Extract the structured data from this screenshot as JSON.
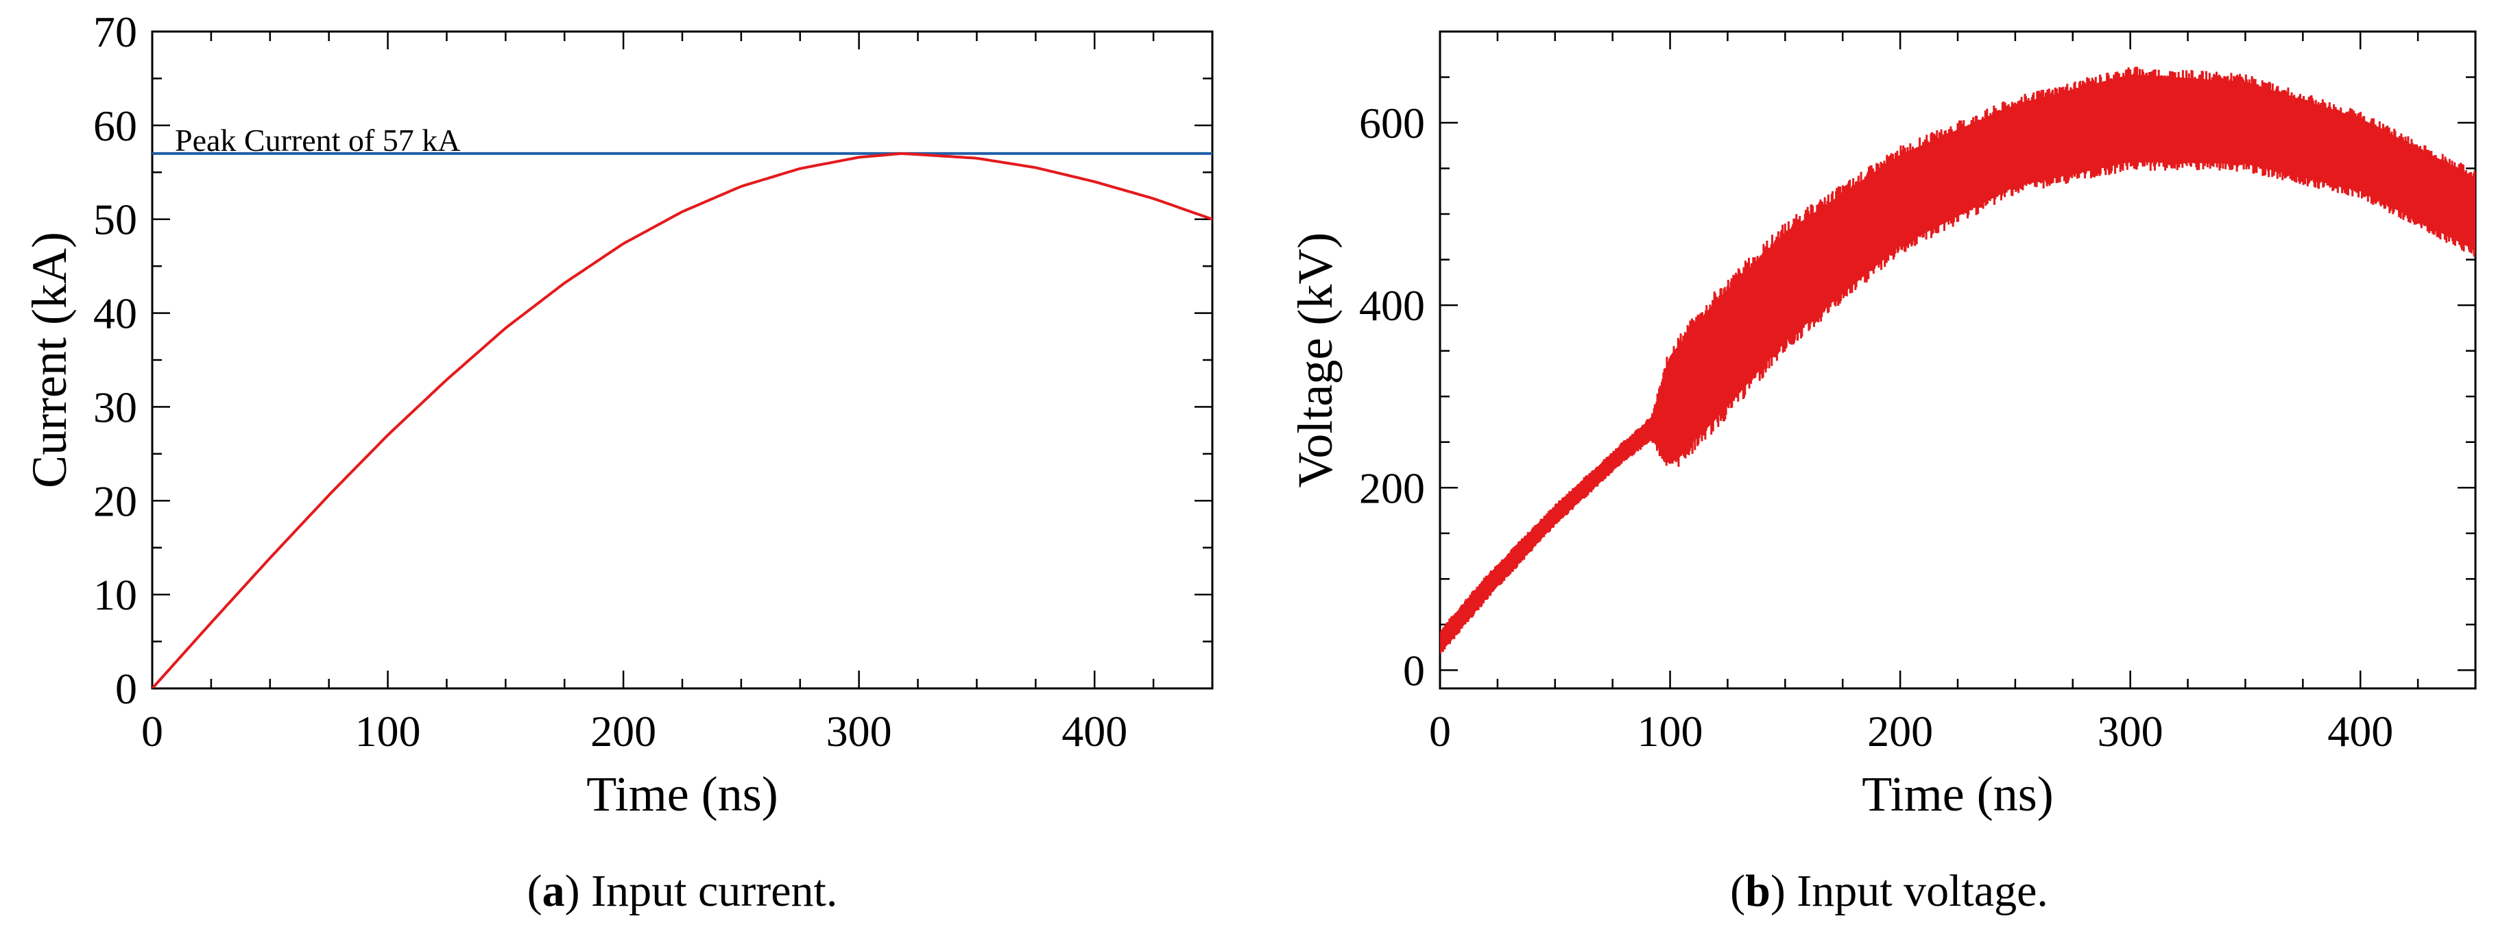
{
  "chart_data": [
    {
      "type": "line",
      "id": "a",
      "xlabel": "Time (ns)",
      "ylabel": "Current (kA)",
      "xlim": [
        0,
        450
      ],
      "ylim": [
        0,
        70
      ],
      "xticks": [
        0,
        100,
        200,
        300,
        400
      ],
      "yticks": [
        0,
        10,
        20,
        30,
        40,
        50,
        60,
        70
      ],
      "caption_label": "a",
      "caption_text": " Input current.",
      "series": [
        {
          "name": "Input current",
          "color": "#e41a1c",
          "x": [
            0,
            25,
            50,
            75,
            100,
            125,
            150,
            175,
            200,
            225,
            250,
            275,
            300,
            318,
            325,
            350,
            375,
            400,
            425,
            450
          ],
          "y": [
            0,
            7.0,
            13.9,
            20.6,
            27.0,
            32.9,
            38.4,
            43.2,
            47.4,
            50.8,
            53.5,
            55.4,
            56.6,
            57.0,
            56.9,
            56.5,
            55.5,
            54.0,
            52.2,
            50.0
          ]
        },
        {
          "name": "Peak current line",
          "color": "#1f5fa8",
          "x": [
            0,
            450
          ],
          "y": [
            57,
            57
          ]
        }
      ],
      "annotation": "Peak Current of 57 kA"
    },
    {
      "type": "line",
      "id": "b",
      "xlabel": "Time (ns)",
      "ylabel": "Voltage (kV)",
      "xlim": [
        0,
        450
      ],
      "ylim": [
        -20,
        700
      ],
      "xticks": [
        0,
        100,
        200,
        300,
        400
      ],
      "yticks": [
        0,
        200,
        400,
        600
      ],
      "caption_label": "b",
      "caption_text": " Input voltage.",
      "series": [
        {
          "name": "Input voltage (mean)",
          "color": "#e41a1c",
          "x": [
            0,
            20,
            50,
            80,
            92,
            100,
            120,
            150,
            200,
            250,
            300,
            350,
            400,
            450
          ],
          "y": [
            30,
            90,
            170,
            240,
            265,
            285,
            340,
            420,
            515,
            575,
            605,
            600,
            565,
            500
          ]
        },
        {
          "name": "Input voltage (oscillation amplitude)",
          "color": "#e41a1c",
          "x": [
            0,
            20,
            50,
            80,
            92,
            100,
            120,
            150,
            200,
            250,
            300,
            350,
            400,
            450
          ],
          "y": [
            12,
            12,
            10,
            10,
            12,
            60,
            65,
            60,
            50,
            45,
            48,
            45,
            40,
            40
          ]
        }
      ]
    }
  ]
}
